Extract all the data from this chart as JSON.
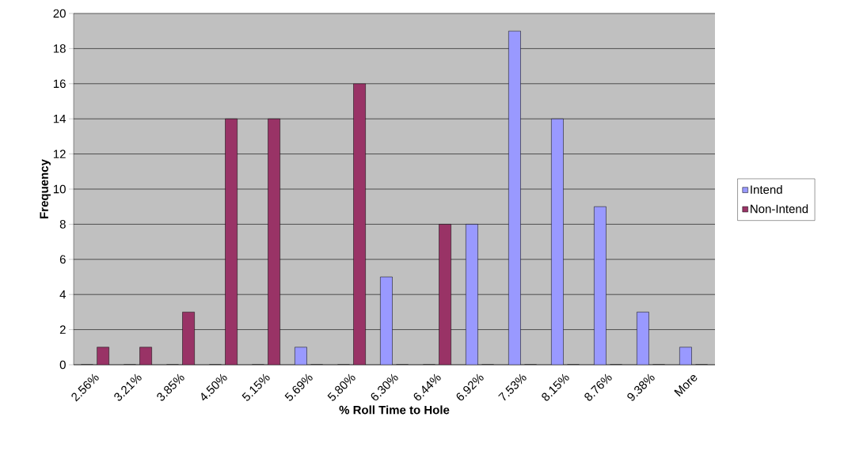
{
  "chart_data": {
    "type": "bar",
    "xlabel": "% Roll Time to Hole",
    "ylabel": "Frequency",
    "categories": [
      "2.56%",
      "3.21%",
      "3.85%",
      "4.50%",
      "5.15%",
      "5.69%",
      "5.80%",
      "6.30%",
      "6.44%",
      "6.92%",
      "7.53%",
      "8.15%",
      "8.76%",
      "9.38%",
      "More"
    ],
    "series": [
      {
        "name": "Intend",
        "color": "#9999ff",
        "values": [
          0,
          0,
          0,
          0,
          0,
          1,
          0,
          5,
          0,
          8,
          19,
          14,
          9,
          3,
          1
        ]
      },
      {
        "name": "Non-Intend",
        "color": "#993366",
        "values": [
          1,
          1,
          3,
          14,
          14,
          0,
          16,
          0,
          8,
          0,
          0,
          0,
          0,
          0,
          0
        ]
      }
    ],
    "ylim": [
      0,
      20
    ],
    "yticks": [
      0,
      2,
      4,
      6,
      8,
      10,
      12,
      14,
      16,
      18,
      20
    ],
    "grid": "y",
    "legend": "right"
  }
}
